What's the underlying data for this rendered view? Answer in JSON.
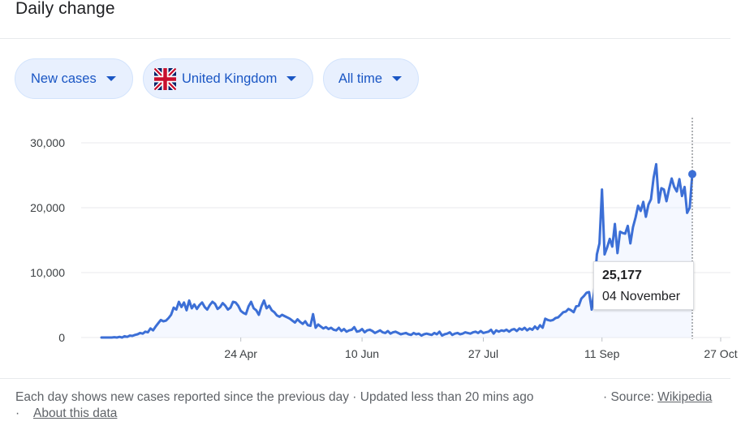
{
  "header": {
    "title": "Daily change"
  },
  "filters": {
    "metric": {
      "label": "New cases",
      "icon": "chevron-down-icon"
    },
    "country": {
      "label": "United Kingdom",
      "flag": "uk-flag-icon",
      "icon": "chevron-down-icon"
    },
    "period": {
      "label": "All time",
      "icon": "chevron-down-icon"
    }
  },
  "colors": {
    "line": "#3c6fd6",
    "fill": "#e8f0fe",
    "grid": "#e8eaed",
    "chip_text": "#1a56c4"
  },
  "tooltip": {
    "value": "25,177",
    "date": "04 November"
  },
  "footer": {
    "note": "Each day shows new cases reported since the previous day · Updated less than 20 mins ago",
    "source_label": "·  Source:",
    "source_link": "Wikipedia",
    "separator": "·",
    "about_link": "About this data"
  },
  "chart_data": {
    "type": "area",
    "title": "",
    "xlabel": "",
    "ylabel": "",
    "ylim": [
      0,
      30000
    ],
    "yticks": [
      0,
      10000,
      20000,
      30000
    ],
    "ytick_labels": [
      "0",
      "10,000",
      "20,000",
      "30,000"
    ],
    "xticks": [
      "24 Apr",
      "10 Jun",
      "27 Jul",
      "11 Sep",
      "27 Oct"
    ],
    "grid": true,
    "start_date": "2020-03-01",
    "end_date": "2020-11-04",
    "series": [
      {
        "name": "",
        "values": [
          0,
          0,
          0,
          0,
          0,
          50,
          0,
          100,
          0,
          200,
          100,
          300,
          250,
          400,
          500,
          700,
          600,
          900,
          800,
          1400,
          1100,
          1700,
          2200,
          2700,
          2500,
          2600,
          3000,
          3500,
          4600,
          4300,
          5500,
          4700,
          5400,
          4200,
          5700,
          4500,
          5100,
          4400,
          5000,
          5400,
          4700,
          4300,
          5000,
          5500,
          5200,
          4400,
          4700,
          5300,
          4900,
          4300,
          4600,
          5500,
          5400,
          4900,
          4100,
          3800,
          3600,
          4800,
          5500,
          4500,
          4200,
          3500,
          4800,
          5700,
          4500,
          4900,
          4200,
          3900,
          3400,
          3200,
          3500,
          3300,
          3100,
          2900,
          2600,
          2300,
          2800,
          2400,
          2100,
          2500,
          1900,
          1800,
          3600,
          1500,
          2000,
          1700,
          1400,
          1600,
          1300,
          1500,
          1200,
          1100,
          1500,
          1000,
          1300,
          900,
          1100,
          1200,
          1600,
          900,
          1000,
          1300,
          800,
          1100,
          1200,
          1000,
          700,
          900,
          1100,
          800,
          700,
          1000,
          600,
          800,
          900,
          700,
          500,
          600,
          700,
          500,
          400,
          700,
          500,
          600,
          300,
          500,
          600,
          500,
          400,
          700,
          500,
          900,
          300,
          500,
          600,
          800,
          400,
          600,
          700,
          500,
          600,
          800,
          700,
          600,
          800,
          900,
          700,
          1000,
          700,
          800,
          900,
          1200,
          600,
          1100,
          900,
          1100,
          1000,
          1200,
          900,
          1200,
          1300,
          1000,
          1400,
          1200,
          1500,
          1100,
          1400,
          1200,
          1700,
          1300,
          1900,
          1500,
          2900,
          2700,
          2600,
          2700,
          3000,
          3100,
          3500,
          3900,
          4000,
          4400,
          4200,
          3900,
          4800,
          4900,
          6000,
          6400,
          6900,
          7000,
          4300,
          7100,
          12800,
          14500,
          22800,
          12800,
          13900,
          15200,
          14000,
          17500,
          13000,
          16300,
          16100,
          16000,
          17200,
          14500,
          17000,
          18500,
          20300,
          19500,
          20900,
          18600,
          20500,
          21300,
          24600,
          26700,
          20800,
          23000,
          22800,
          21000,
          22900,
          24500,
          23200,
          22500,
          24400,
          21800,
          23200,
          19200,
          20000,
          25177
        ]
      }
    ]
  }
}
